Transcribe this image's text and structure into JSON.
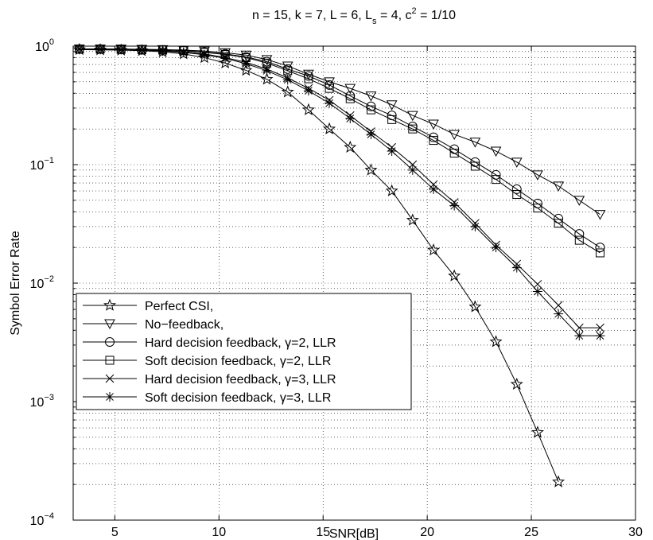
{
  "chart_data": {
    "type": "line",
    "title": {
      "base": "n = 15, k = 7, L = 6, L",
      "sub": "s",
      "mid": " = 4, c",
      "sup": "2",
      "end": " = 1/10"
    },
    "xlabel": "SNR[dB]",
    "ylabel": "Symbol Error Rate",
    "xlim": [
      3,
      30
    ],
    "ylim": [
      0.0001,
      1
    ],
    "yscale": "log",
    "grid": true,
    "legend_position": "bottom-left",
    "xticks": [
      5,
      10,
      15,
      20,
      25,
      30
    ],
    "xtick_labels": [
      "5",
      "10",
      "15",
      "20",
      "25",
      "30"
    ],
    "yticks": [
      {
        "value": 1,
        "base": "10",
        "exp": "0"
      },
      {
        "value": 0.1,
        "base": "10",
        "exp": "−1"
      },
      {
        "value": 0.01,
        "base": "10",
        "exp": "−2"
      },
      {
        "value": 0.001,
        "base": "10",
        "exp": "−3"
      },
      {
        "value": 0.0001,
        "base": "10",
        "exp": "−4"
      }
    ],
    "x": [
      3.3,
      4.3,
      5.3,
      6.3,
      7.3,
      8.3,
      9.3,
      10.3,
      11.3,
      12.3,
      13.3,
      14.3,
      15.3,
      16.3,
      17.3,
      18.3,
      19.3,
      20.3,
      21.3,
      22.3,
      23.3,
      24.3,
      25.3,
      26.3,
      27.3,
      28.3
    ],
    "series": [
      {
        "name": "Perfect CSI,",
        "marker": "star",
        "values": [
          0.935,
          0.93,
          0.925,
          0.915,
          0.895,
          0.86,
          0.8,
          0.72,
          0.625,
          0.525,
          0.41,
          0.29,
          0.2,
          0.14,
          0.09,
          0.06,
          0.034,
          0.019,
          0.0115,
          0.0063,
          0.0032,
          0.0014,
          0.00055,
          0.00021,
          null,
          null
        ]
      },
      {
        "name": "No−feedback,",
        "marker": "triangle-down",
        "values": [
          0.945,
          0.945,
          0.945,
          0.94,
          0.935,
          0.925,
          0.91,
          0.88,
          0.84,
          0.77,
          0.68,
          0.58,
          0.5,
          0.44,
          0.38,
          0.32,
          0.26,
          0.22,
          0.18,
          0.155,
          0.13,
          0.105,
          0.082,
          0.066,
          0.05,
          0.038
        ]
      },
      {
        "name": "Hard decision feedback, γ=2, LLR",
        "marker": "circle",
        "values": [
          0.945,
          0.945,
          0.94,
          0.935,
          0.93,
          0.92,
          0.89,
          0.86,
          0.81,
          0.74,
          0.64,
          0.56,
          0.47,
          0.38,
          0.31,
          0.26,
          0.21,
          0.17,
          0.135,
          0.105,
          0.082,
          0.062,
          0.047,
          0.035,
          0.026,
          0.02
        ]
      },
      {
        "name": "Soft decision feedback,  γ=2, LLR",
        "marker": "square",
        "values": [
          0.945,
          0.945,
          0.94,
          0.935,
          0.93,
          0.915,
          0.885,
          0.85,
          0.8,
          0.72,
          0.62,
          0.53,
          0.44,
          0.36,
          0.29,
          0.24,
          0.2,
          0.16,
          0.125,
          0.097,
          0.075,
          0.056,
          0.043,
          0.032,
          0.023,
          0.018
        ]
      },
      {
        "name": "Hard decision feedback, γ=3, LLR",
        "marker": "x",
        "values": [
          0.945,
          0.94,
          0.935,
          0.93,
          0.92,
          0.895,
          0.86,
          0.8,
          0.73,
          0.64,
          0.54,
          0.44,
          0.35,
          0.26,
          0.19,
          0.14,
          0.1,
          0.068,
          0.048,
          0.032,
          0.021,
          0.0145,
          0.0098,
          0.0065,
          0.0042,
          0.0042
        ]
      },
      {
        "name": "Soft decision feedback,  γ=3, LLR",
        "marker": "asterisk",
        "values": [
          0.945,
          0.94,
          0.935,
          0.925,
          0.91,
          0.885,
          0.845,
          0.79,
          0.71,
          0.62,
          0.52,
          0.42,
          0.33,
          0.245,
          0.18,
          0.13,
          0.09,
          0.062,
          0.045,
          0.03,
          0.02,
          0.0135,
          0.0085,
          0.0055,
          0.0036,
          0.0036
        ]
      }
    ]
  }
}
